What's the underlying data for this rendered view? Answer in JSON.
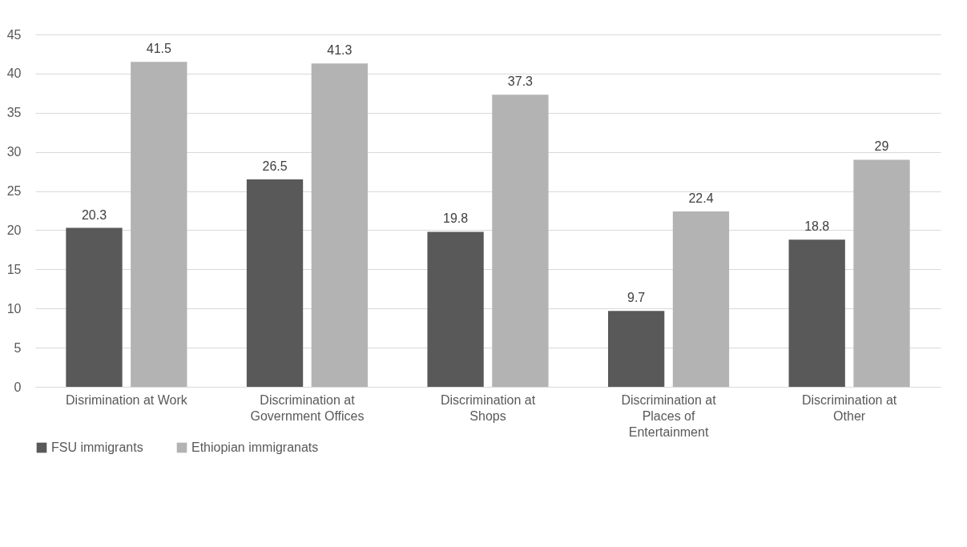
{
  "chart_data": {
    "type": "bar",
    "categories": [
      "Disrimination at Work",
      "Discrimination at Government Offices",
      "Discrimination at Shops",
      "Discrimination at Places of Entertainment",
      "Discrimination at Other"
    ],
    "series": [
      {
        "name": "FSU immigrants",
        "color": "#595959",
        "values": [
          20.3,
          26.5,
          19.8,
          9.7,
          18.8
        ]
      },
      {
        "name": "Ethiopian immigranats",
        "color": "#b3b3b3",
        "values": [
          41.5,
          41.3,
          37.3,
          22.4,
          29
        ]
      }
    ],
    "ylim": [
      0,
      45
    ],
    "yticks": [
      0,
      5,
      10,
      15,
      20,
      25,
      30,
      35,
      40,
      45
    ],
    "grid": "y",
    "legend": "bottom",
    "data_labels": true
  }
}
